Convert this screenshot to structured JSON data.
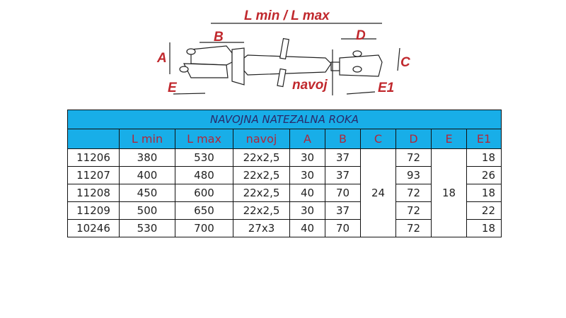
{
  "diagram": {
    "labels": {
      "length": "L min / L max",
      "B": "B",
      "D": "D",
      "A": "A",
      "C": "C",
      "E": "E",
      "E1": "E1",
      "navoj": "navoj"
    },
    "label_color": "#c0282d"
  },
  "table": {
    "title": "NAVOJNA NATEZALNA ROKA",
    "header_color": "#18aee8",
    "columns": [
      "",
      "L min",
      "L max",
      "navoj",
      "A",
      "B",
      "C",
      "D",
      "E",
      "E1"
    ],
    "rows": [
      {
        "code": "11206",
        "lmin": "380",
        "lmax": "530",
        "navoj": "22x2,5",
        "A": "30",
        "B": "37",
        "D": "72",
        "E1": "18"
      },
      {
        "code": "11207",
        "lmin": "400",
        "lmax": "480",
        "navoj": "22x2,5",
        "A": "30",
        "B": "37",
        "D": "93",
        "E1": "26"
      },
      {
        "code": "11208",
        "lmin": "450",
        "lmax": "600",
        "navoj": "22x2,5",
        "A": "40",
        "B": "70",
        "D": "72",
        "E1": "18"
      },
      {
        "code": "11209",
        "lmin": "500",
        "lmax": "650",
        "navoj": "22x2,5",
        "A": "30",
        "B": "37",
        "D": "72",
        "E1": "22"
      },
      {
        "code": "10246",
        "lmin": "530",
        "lmax": "700",
        "navoj": "27x3",
        "A": "40",
        "B": "70",
        "D": "72",
        "E1": "18"
      }
    ],
    "merged_C": "24",
    "merged_E": "18"
  }
}
